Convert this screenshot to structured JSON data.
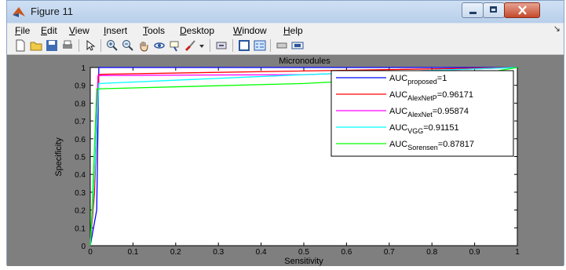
{
  "window": {
    "title": "Figure 11"
  },
  "menu": [
    "File",
    "Edit",
    "View",
    "Insert",
    "Tools",
    "Desktop",
    "Window",
    "Help"
  ],
  "toolbar": {
    "buttons": [
      "new-figure-icon",
      "open-file-icon",
      "save-icon",
      "print-icon",
      "edit-plot-arrow-icon",
      "zoom-in-icon",
      "zoom-out-icon",
      "pan-hand-icon",
      "rotate-3d-icon",
      "data-cursor-icon",
      "brush-icon",
      "brush-dropdown-icon",
      "link-plot-icon",
      "insert-colorbar-icon",
      "insert-legend-icon",
      "hide-plot-tools-icon",
      "show-plot-tools-icon"
    ]
  },
  "colors": {
    "background": "#7f7f7f",
    "axes": "#ffffff"
  },
  "chart_data": {
    "type": "line",
    "title": "Micronodules",
    "xlabel": "Sensitivity",
    "ylabel": "Specificity",
    "xlim": [
      0,
      1
    ],
    "ylim": [
      0,
      1
    ],
    "xticks": [
      "0",
      "0.1",
      "0.2",
      "0.3",
      "0.4",
      "0.5",
      "0.6",
      "0.7",
      "0.8",
      "0.9",
      "1"
    ],
    "yticks": [
      "0",
      "0.1",
      "0.2",
      "0.3",
      "0.4",
      "0.5",
      "0.6",
      "0.7",
      "0.8",
      "0.9",
      "1"
    ],
    "grid": false,
    "legend_position": "top-right",
    "series": [
      {
        "name": "AUC",
        "sub": "proposed",
        "value": "=1",
        "color": "#0000ff",
        "x": [
          0,
          0.015,
          0.02,
          1
        ],
        "y": [
          0,
          0.2,
          1,
          1
        ]
      },
      {
        "name": "AUC",
        "sub": "AlexNetP",
        "value": "=0.96171",
        "color": "#ff0000",
        "x": [
          0,
          0.01,
          0.02,
          0.025,
          1
        ],
        "y": [
          0,
          0.3,
          0.96,
          0.962,
          1
        ]
      },
      {
        "name": "AUC",
        "sub": "AlexNet",
        "value": "=0.95874",
        "color": "#ff00ff",
        "x": [
          0,
          0.012,
          0.018,
          0.5,
          1
        ],
        "y": [
          0,
          0.5,
          0.955,
          0.96,
          1
        ]
      },
      {
        "name": "AUC",
        "sub": "VGG",
        "value": "=0.91151",
        "color": "#00ffff",
        "x": [
          0,
          0.01,
          0.02,
          0.5,
          1
        ],
        "y": [
          0,
          0.4,
          0.91,
          0.96,
          1
        ]
      },
      {
        "name": "AUC",
        "sub": "Sorensen",
        "value": "=0.87817",
        "color": "#00ff00",
        "x": [
          0,
          0.004,
          0.015,
          0.5,
          0.9,
          1
        ],
        "y": [
          0,
          0.2,
          0.88,
          0.91,
          0.96,
          1
        ]
      }
    ]
  }
}
